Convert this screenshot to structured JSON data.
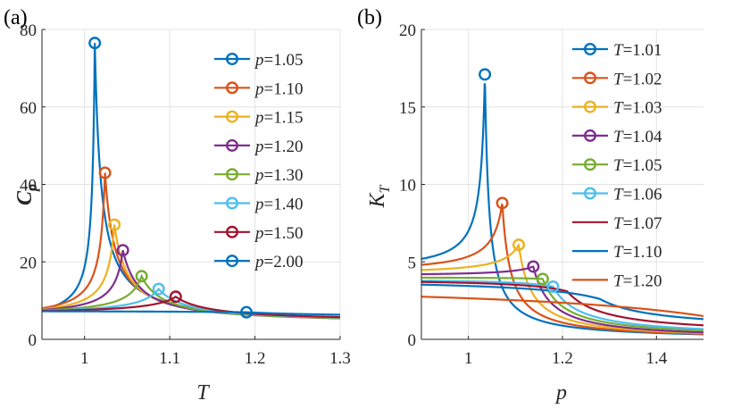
{
  "chart_data": [
    {
      "type": "line",
      "panel_label": "(a)",
      "xlabel": "T",
      "ylabel": "C",
      "ylabel_sub": "p",
      "xlim": [
        0.95,
        1.3
      ],
      "ylim": [
        0,
        80
      ],
      "xticks": [
        1,
        1.1,
        1.2,
        1.3
      ],
      "xtick_labels": [
        "1",
        "1.1",
        "1.2",
        "1.3"
      ],
      "yticks": [
        0,
        20,
        40,
        60,
        80
      ],
      "ytick_labels": [
        "0",
        "20",
        "40",
        "60",
        "80"
      ],
      "grid": true,
      "legend_position": "top-right",
      "legend_var": "p",
      "series": [
        {
          "name": "1.05",
          "color": "#0072BD",
          "peak": [
            1.012,
            76.5
          ],
          "base": 4.3,
          "tail": 3.6,
          "wl": 0.003,
          "wr": 0.0075
        },
        {
          "name": "1.10",
          "color": "#D95319",
          "peak": [
            1.024,
            43.0
          ],
          "base": 5.2,
          "tail": 3.9,
          "wl": 0.006,
          "wr": 0.012
        },
        {
          "name": "1.15",
          "color": "#EDB120",
          "peak": [
            1.035,
            29.6
          ],
          "base": 5.6,
          "tail": 4.0,
          "wl": 0.0085,
          "wr": 0.016
        },
        {
          "name": "1.20",
          "color": "#7E2F8E",
          "peak": [
            1.045,
            23.0
          ],
          "base": 5.9,
          "tail": 4.1,
          "wl": 0.0105,
          "wr": 0.0195
        },
        {
          "name": "1.30",
          "color": "#77AC30",
          "peak": [
            1.067,
            16.3
          ],
          "base": 6.2,
          "tail": 4.3,
          "wl": 0.017,
          "wr": 0.026
        },
        {
          "name": "1.40",
          "color": "#4DBEEE",
          "peak": [
            1.087,
            13.0
          ],
          "base": 6.4,
          "tail": 4.5,
          "wl": 0.024,
          "wr": 0.034
        },
        {
          "name": "1.50",
          "color": "#A2142F",
          "peak": [
            1.107,
            11.0
          ],
          "base": 6.6,
          "tail": 4.6,
          "wl": 0.032,
          "wr": 0.042
        },
        {
          "name": "2.00",
          "color": "#0072BD",
          "peak": [
            1.19,
            7.0
          ],
          "base": 7.4,
          "tail": 5.6,
          "wl": 0.15,
          "wr": 0.13
        }
      ]
    },
    {
      "type": "line",
      "panel_label": "(b)",
      "xlabel": "p",
      "ylabel": "K",
      "ylabel_sub": "T",
      "xlim": [
        0.9,
        1.5
      ],
      "ylim": [
        0,
        20
      ],
      "xticks": [
        1,
        1.2,
        1.4
      ],
      "xtick_labels": [
        "1",
        "1.2",
        "1.4"
      ],
      "yticks": [
        0,
        5,
        10,
        15,
        20
      ],
      "ytick_labels": [
        "0",
        "5",
        "10",
        "15",
        "20"
      ],
      "grid": true,
      "legend_position": "top-right",
      "legend_var": "T",
      "series": [
        {
          "name": "1.01",
          "color": "#0072BD",
          "peak": [
            1.035,
            17.1
          ],
          "base": 4.4,
          "tail": 0.0,
          "wl": 0.009,
          "wr": 0.009,
          "marker": true
        },
        {
          "name": "1.02",
          "color": "#D95319",
          "peak": [
            1.072,
            8.8
          ],
          "base": 4.3,
          "tail": 0.0,
          "wl": 0.022,
          "wr": 0.018,
          "marker": true
        },
        {
          "name": "1.03",
          "color": "#EDB120",
          "peak": [
            1.107,
            6.1
          ],
          "base": 4.2,
          "tail": 0.0,
          "wl": 0.035,
          "wr": 0.028,
          "marker": true
        },
        {
          "name": "1.04",
          "color": "#7E2F8E",
          "peak": [
            1.138,
            4.7
          ],
          "base": 4.1,
          "tail": 0.0,
          "wl": 0.05,
          "wr": 0.038,
          "marker": true
        },
        {
          "name": "1.05",
          "color": "#77AC30",
          "peak": [
            1.158,
            3.9
          ],
          "base": 4.0,
          "tail": 0.1,
          "wl": 0.065,
          "wr": 0.048,
          "marker": true
        },
        {
          "name": "1.06",
          "color": "#4DBEEE",
          "peak": [
            1.18,
            3.4
          ],
          "base": 3.9,
          "tail": 0.15,
          "wl": 0.08,
          "wr": 0.06,
          "marker": true
        },
        {
          "name": "1.07",
          "color": "#A2142F",
          "peak": [
            1.21,
            3.1
          ],
          "base": 3.9,
          "tail": 0.3,
          "wl": 0.1,
          "wr": 0.08,
          "marker": false
        },
        {
          "name": "1.10",
          "color": "#0072BD",
          "peak": [
            1.28,
            2.6
          ],
          "base": 3.9,
          "tail": 0.6,
          "wl": 0.15,
          "wr": 0.12,
          "marker": false
        },
        {
          "name": "1.20",
          "color": "#D95319",
          "peak": [
            1.5,
            1.5
          ],
          "base": 3.8,
          "tail": 1.5,
          "wl": 0.5,
          "wr": 0.3,
          "marker": false
        }
      ]
    }
  ]
}
